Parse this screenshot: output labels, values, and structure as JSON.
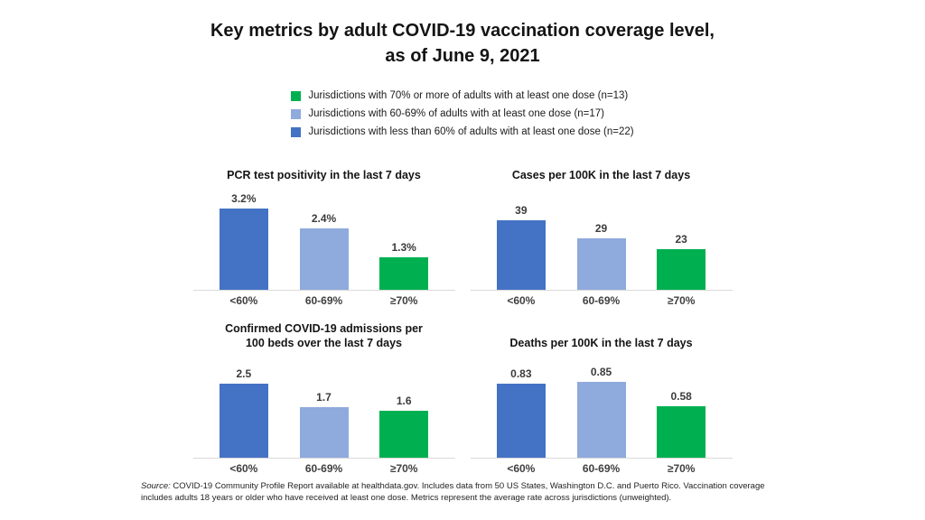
{
  "slide": {
    "title_line1": "Key metrics by adult COVID-19 vaccination coverage level,",
    "title_line2": "as of June 9, 2021",
    "source_label": "Source:",
    "source_text": " COVID-19 Community Profile Report available at healthdata.gov. Includes data from 50 US States, Washington D.C. and Puerto Rico. Vaccination coverage includes adults 18 years or older who have received at least one dose. Metrics represent the average rate across jurisdictions (unweighted)."
  },
  "legend": {
    "items": [
      {
        "label": "Jurisdictions with 70% or more of adults with at least one dose (n=13)",
        "color": "#00B050"
      },
      {
        "label": "Jurisdictions with 60-69% of adults with at least one dose (n=17)",
        "color": "#8FAADC"
      },
      {
        "label": "Jurisdictions with less than 60% of adults with at least one dose (n=22)",
        "color": "#4472C4"
      }
    ]
  },
  "colors": {
    "dark_blue": "#4472C4",
    "light_blue": "#8FAADC",
    "green": "#00B050",
    "axis_line": "#D9D9D9",
    "label_text": "#404040"
  },
  "chart_data": [
    {
      "type": "bar",
      "title": "PCR test positivity in the last 7 days",
      "categories": [
        "<60%",
        "60-69%",
        "≥70%"
      ],
      "values": [
        3.2,
        2.4,
        1.3
      ],
      "value_labels": [
        "3.2%",
        "2.4%",
        "1.3%"
      ],
      "bar_colors": [
        "#4472C4",
        "#8FAADC",
        "#00B050"
      ],
      "ylim": [
        0,
        3.5
      ],
      "grid": false,
      "legend_position": "none"
    },
    {
      "type": "bar",
      "title": "Cases per 100K in the last 7 days",
      "categories": [
        "<60%",
        "60-69%",
        "≥70%"
      ],
      "values": [
        39,
        29,
        23
      ],
      "value_labels": [
        "39",
        "29",
        "23"
      ],
      "bar_colors": [
        "#4472C4",
        "#8FAADC",
        "#00B050"
      ],
      "ylim": [
        0,
        50
      ],
      "grid": false,
      "legend_position": "none"
    },
    {
      "type": "bar",
      "title": "Confirmed COVID-19 admissions per\n100 beds over the last 7 days",
      "categories": [
        "<60%",
        "60-69%",
        "≥70%"
      ],
      "values": [
        2.5,
        1.7,
        1.6
      ],
      "value_labels": [
        "2.5",
        "1.7",
        "1.6"
      ],
      "bar_colors": [
        "#4472C4",
        "#8FAADC",
        "#00B050"
      ],
      "ylim": [
        0,
        3.0
      ],
      "grid": false,
      "legend_position": "none"
    },
    {
      "type": "bar",
      "title": "Deaths per 100K in the last 7 days",
      "categories": [
        "<60%",
        "60-69%",
        "≥70%"
      ],
      "values": [
        0.83,
        0.85,
        0.58
      ],
      "value_labels": [
        "0.83",
        "0.85",
        "0.58"
      ],
      "bar_colors": [
        "#4472C4",
        "#8FAADC",
        "#00B050"
      ],
      "ylim": [
        0,
        1.0
      ],
      "grid": false,
      "legend_position": "none"
    }
  ]
}
